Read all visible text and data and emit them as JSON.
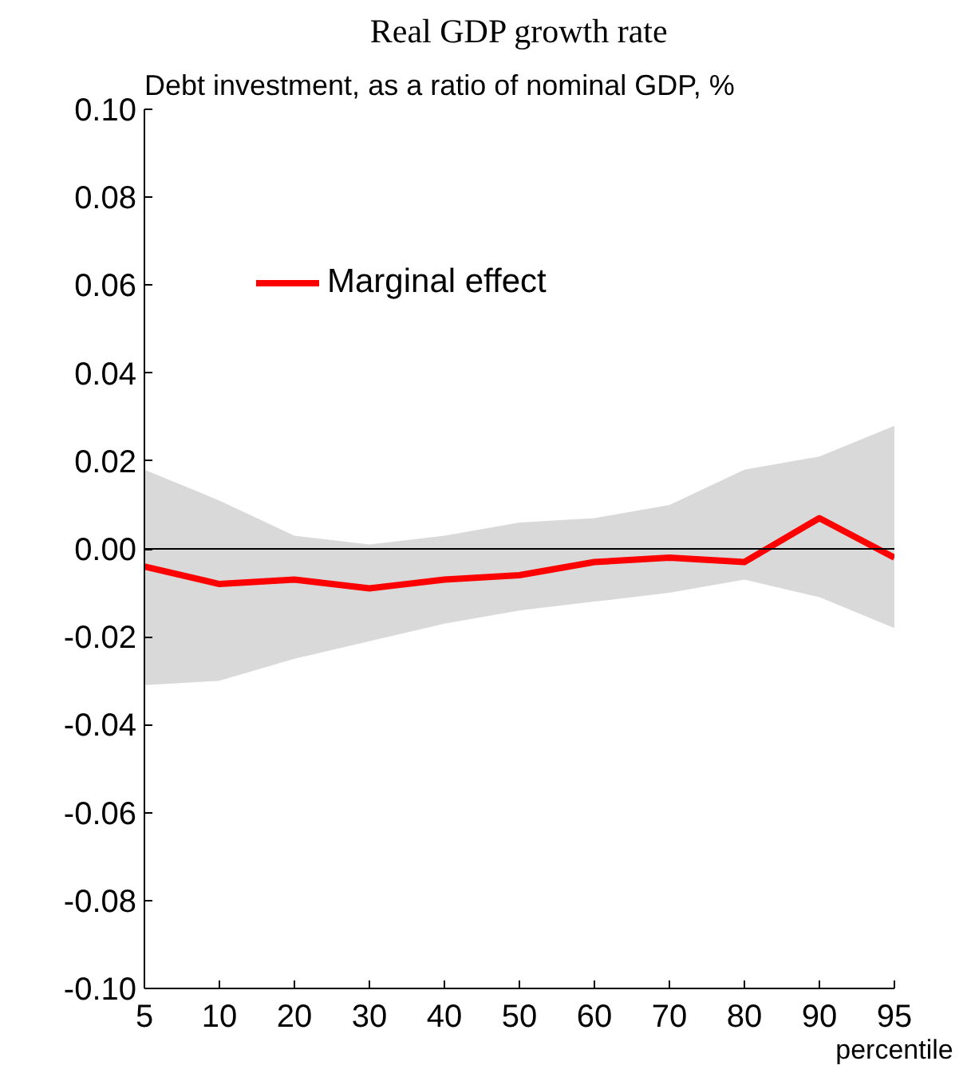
{
  "chart_data": {
    "type": "line",
    "title": "Real GDP growth rate",
    "subtitle": "Debt investment, as a ratio of nominal GDP, %",
    "xlabel": "percentile",
    "categories": [
      "5",
      "10",
      "20",
      "30",
      "40",
      "50",
      "60",
      "70",
      "80",
      "90",
      "95"
    ],
    "series": [
      {
        "name": "Marginal effect",
        "color": "#ff0000",
        "values": [
          -0.004,
          -0.008,
          -0.007,
          -0.009,
          -0.007,
          -0.006,
          -0.003,
          -0.002,
          -0.003,
          0.007,
          -0.002
        ],
        "lower": [
          -0.031,
          -0.03,
          -0.025,
          -0.021,
          -0.017,
          -0.014,
          -0.012,
          -0.01,
          -0.007,
          -0.011,
          -0.018
        ],
        "upper": [
          0.018,
          0.011,
          0.003,
          0.001,
          0.003,
          0.006,
          0.007,
          0.01,
          0.018,
          0.021,
          0.028
        ]
      }
    ],
    "ylim": [
      -0.1,
      0.1
    ],
    "yticks": [
      {
        "value": -0.1,
        "label": "-0.10"
      },
      {
        "value": -0.08,
        "label": "-0.08"
      },
      {
        "value": -0.06,
        "label": "-0.06"
      },
      {
        "value": -0.04,
        "label": "-0.04"
      },
      {
        "value": -0.02,
        "label": "-0.02"
      },
      {
        "value": 0,
        "label": "0.00"
      },
      {
        "value": 0.02,
        "label": "0.02"
      },
      {
        "value": 0.04,
        "label": "0.04"
      },
      {
        "value": 0.06,
        "label": "0.06"
      },
      {
        "value": 0.08,
        "label": "0.08"
      },
      {
        "value": 0.1,
        "label": "0.10"
      }
    ],
    "ref_lines": [
      {
        "axis": "y",
        "value": 0,
        "color": "#000000"
      }
    ],
    "legend": "top left",
    "grid": false,
    "line_style": "solid"
  }
}
